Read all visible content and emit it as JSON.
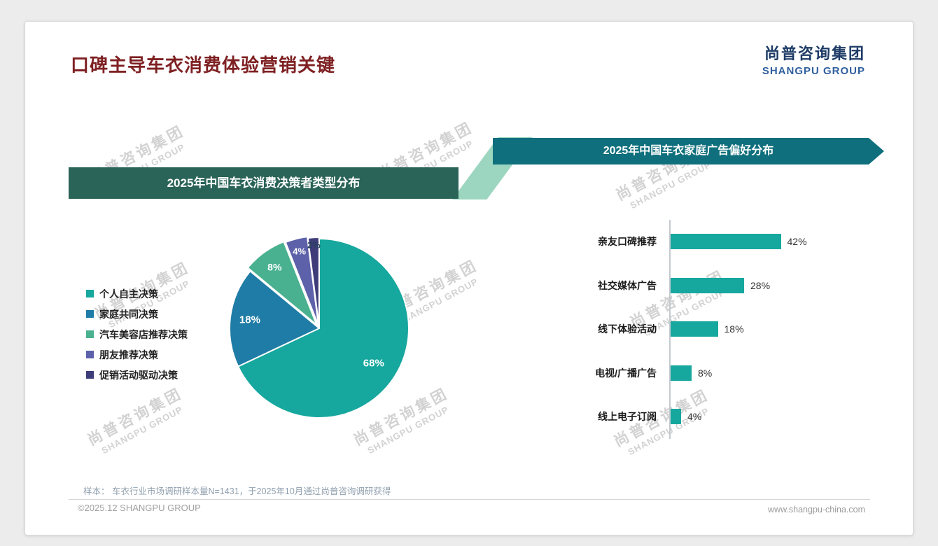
{
  "page": {
    "title": "口碑主导车衣消费体验营销关键"
  },
  "logo": {
    "cn": "尚普咨询集团",
    "en": "SHANGPU GROUP"
  },
  "watermark": {
    "cn": "尚普咨询集团",
    "en": "SHANGPU GROUP"
  },
  "footnote": "样本： 车衣行业市场调研样本量N=1431，于2025年10月通过尚普咨询调研获得",
  "footer": {
    "left": "©2025.12 SHANGPU GROUP",
    "right": "www.shangpu-china.com"
  },
  "colors": {
    "title": "#7e2022",
    "logo_navy": "#1d3b66",
    "logo_blue": "#2f5f9e",
    "banner_left": "#2a6357",
    "banner_right": "#0f6f7c",
    "connector": "#9dd6c0",
    "accent_teal": "#16a79e"
  },
  "chart_data": [
    {
      "type": "pie",
      "title": "2025年中国车衣消费决策者类型分布",
      "labels": [
        "个人自主决策",
        "家庭共同决策",
        "汽车美容店推荐决策",
        "朋友推荐决策",
        "促销活动驱动决策"
      ],
      "values": [
        68,
        18,
        8,
        4,
        2
      ],
      "data_labels": [
        "68%",
        "18%",
        "8%",
        "4%",
        "2%"
      ],
      "colors": [
        "#16a79e",
        "#1f7ca6",
        "#49b18f",
        "#5d61a9",
        "#3e3d7a"
      ],
      "legend_position": "left"
    },
    {
      "type": "bar",
      "title": "2025年中国车衣家庭广告偏好分布",
      "orientation": "horizontal",
      "categories": [
        "亲友口碑推荐",
        "社交媒体广告",
        "线下体验活动",
        "电视/广播广告",
        "线上电子订阅"
      ],
      "values": [
        42,
        28,
        18,
        8,
        4
      ],
      "value_labels": [
        "42%",
        "28%",
        "18%",
        "8%",
        "4%"
      ],
      "bar_color": "#16a79e",
      "xlim": [
        0,
        50
      ],
      "grid": false
    }
  ]
}
